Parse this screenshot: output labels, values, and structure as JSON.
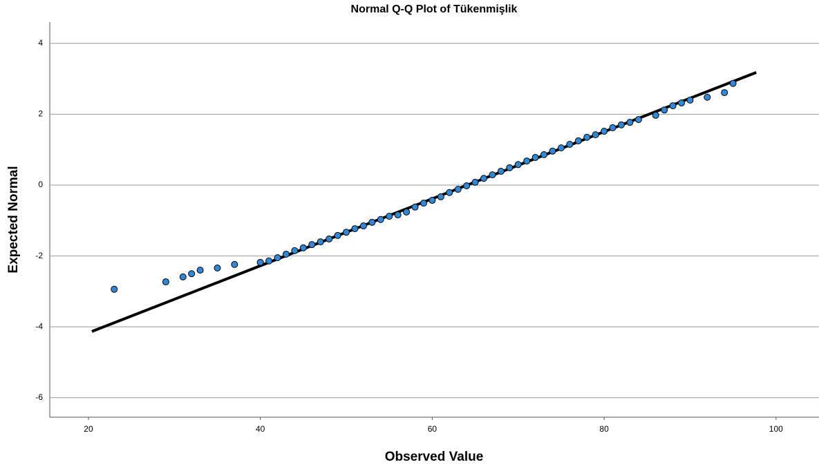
{
  "chart_data": {
    "type": "scatter",
    "title": "Normal Q-Q Plot of Tükenmişlik",
    "x_label": "Observed Value",
    "y_label": "Expected Normal",
    "xlim": [
      15.5,
      105
    ],
    "ylim": [
      -6.55,
      4.6
    ],
    "xticks": [
      20,
      40,
      60,
      80,
      100
    ],
    "yticks": [
      -6,
      -4,
      -2,
      0,
      2,
      4
    ],
    "grid": true,
    "color": "#2e8ad8",
    "x": [
      23,
      29,
      31,
      32,
      33,
      35,
      37,
      40,
      41,
      42,
      43,
      44,
      45,
      46,
      47,
      48,
      49,
      50,
      51,
      52,
      53,
      54,
      55,
      56,
      57,
      58,
      59,
      60,
      61,
      62,
      63,
      64,
      65,
      66,
      67,
      68,
      69,
      70,
      71,
      72,
      73,
      74,
      75,
      76,
      77,
      78,
      79,
      80,
      81,
      82,
      83,
      84,
      86,
      87,
      88,
      89,
      90,
      92,
      94,
      95
    ],
    "values": [
      -2.94,
      -2.73,
      -2.59,
      -2.5,
      -2.4,
      -2.34,
      -2.24,
      -2.18,
      -2.14,
      -2.05,
      -1.95,
      -1.85,
      -1.77,
      -1.68,
      -1.6,
      -1.52,
      -1.42,
      -1.33,
      -1.23,
      -1.15,
      -1.05,
      -0.97,
      -0.88,
      -0.84,
      -0.76,
      -0.62,
      -0.51,
      -0.43,
      -0.33,
      -0.21,
      -0.12,
      -0.02,
      0.08,
      0.19,
      0.29,
      0.39,
      0.49,
      0.58,
      0.68,
      0.78,
      0.86,
      0.96,
      1.05,
      1.15,
      1.25,
      1.35,
      1.42,
      1.52,
      1.62,
      1.7,
      1.77,
      1.85,
      1.97,
      2.12,
      2.24,
      2.32,
      2.4,
      2.48,
      2.61,
      2.87
    ],
    "line": {
      "x": [
        20.4,
        97.7
      ],
      "y": [
        -4.13,
        3.18
      ],
      "color": "#000000"
    }
  }
}
